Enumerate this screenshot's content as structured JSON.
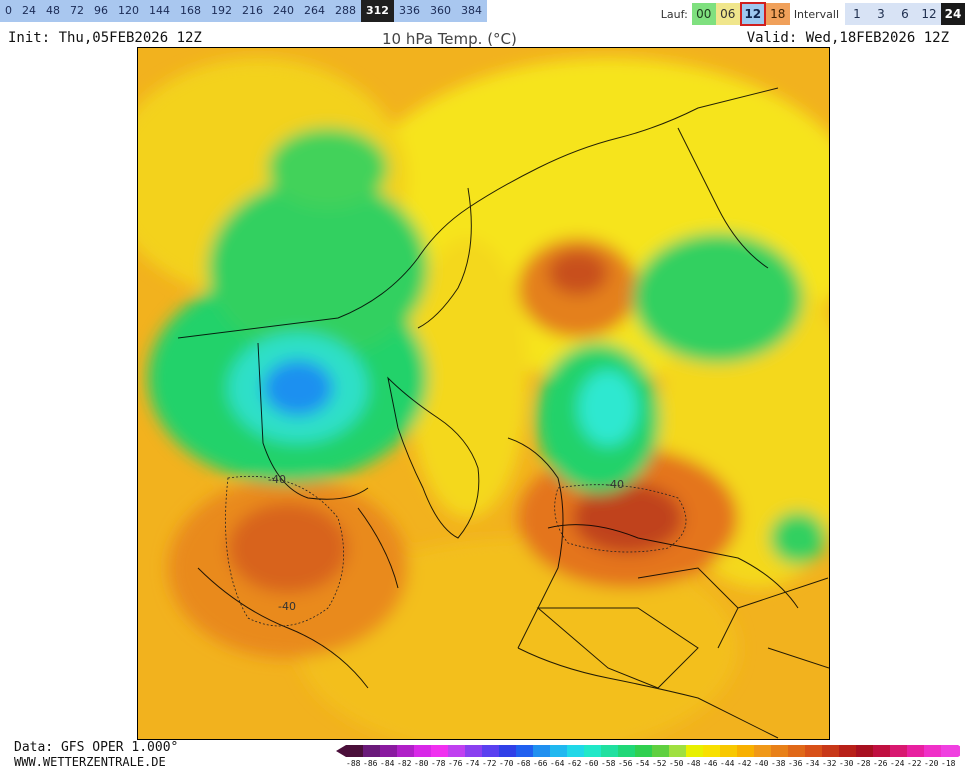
{
  "hour_bar": {
    "hours": [
      "0",
      "24",
      "48",
      "72",
      "96",
      "120",
      "144",
      "168",
      "192",
      "216",
      "240",
      "264",
      "288",
      "312",
      "336",
      "360",
      "384"
    ],
    "selected": "312"
  },
  "run_bar": {
    "lauf_label": "Lauf:",
    "runs": [
      "00",
      "06",
      "12",
      "18"
    ],
    "selected_run": "12",
    "interval_label": "Intervall",
    "intervals": [
      "1",
      "3",
      "6",
      "12",
      "24"
    ],
    "selected_interval": "24"
  },
  "header": {
    "init": "Init: Thu,05FEB2026 12Z",
    "title": "10 hPa Temp. (°C)",
    "valid": "Valid: Wed,18FEB2026 12Z"
  },
  "map": {
    "contour_labels": [
      "-40",
      "-40",
      "-40"
    ]
  },
  "footer": {
    "data_source": "Data: GFS OPER 1.000°",
    "site": "WWW.WETTERZENTRALE.DE"
  },
  "legend": {
    "labels": [
      "-88",
      "-86",
      "-84",
      "-82",
      "-80",
      "-78",
      "-76",
      "-74",
      "-72",
      "-70",
      "-68",
      "-66",
      "-64",
      "-62",
      "-60",
      "-58",
      "-56",
      "-54",
      "-52",
      "-50",
      "-48",
      "-46",
      "-44",
      "-42",
      "-40",
      "-38",
      "-36",
      "-34",
      "-32",
      "-30",
      "-28",
      "-26",
      "-24",
      "-22",
      "-20",
      "-18"
    ],
    "colors": [
      "#4a0f3a",
      "#6a1a7a",
      "#8a1aa0",
      "#b020c8",
      "#d828e8",
      "#f030f0",
      "#c040f0",
      "#8a40f0",
      "#5a40f0",
      "#3040e8",
      "#2060f0",
      "#2090f0",
      "#20b8f0",
      "#20d8e8",
      "#20e8c8",
      "#20e0a0",
      "#20d878",
      "#30d050",
      "#60d040",
      "#a0e040",
      "#e8f000",
      "#f8e000",
      "#f8c800",
      "#f8b000",
      "#f09818",
      "#e88018",
      "#e06818",
      "#d85018",
      "#c83818",
      "#b82018",
      "#a81020",
      "#c01040",
      "#d81870",
      "#e820a0",
      "#f030c8",
      "#f040e0"
    ]
  }
}
